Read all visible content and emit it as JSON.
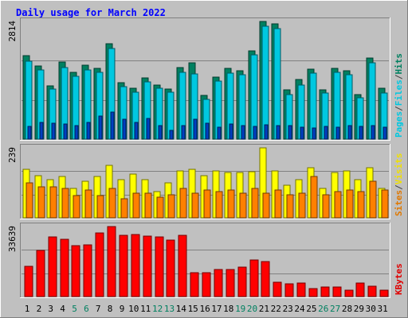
{
  "chart_data": {
    "type": "bar",
    "title": "Daily usage for March 2022",
    "categories": [
      "1",
      "2",
      "3",
      "4",
      "5",
      "6",
      "7",
      "8",
      "9",
      "10",
      "11",
      "12",
      "13",
      "14",
      "15",
      "16",
      "17",
      "18",
      "19",
      "20",
      "21",
      "22",
      "23",
      "24",
      "25",
      "26",
      "27",
      "28",
      "29",
      "30",
      "31"
    ],
    "weekend_days": [
      "5",
      "6",
      "12",
      "13",
      "19",
      "20",
      "26",
      "27"
    ],
    "panels": [
      {
        "id": "hits",
        "ymax": 2814,
        "ymax_label": "2814",
        "ylabel_parts": [
          "Pages",
          "/",
          "Files",
          "/",
          "Hits"
        ],
        "ylabel_colors": [
          "#00c8e0",
          "#404040",
          "#00c8e0",
          "#404040",
          "#008060"
        ],
        "series": [
          {
            "name": "Hits",
            "color": "#008060",
            "values": [
              1990,
              1750,
              1280,
              1840,
              1600,
              1770,
              1700,
              2290,
              1350,
              1210,
              1470,
              1300,
              1200,
              1710,
              1830,
              1050,
              1490,
              1700,
              1640,
              2120,
              2820,
              2750,
              1180,
              1420,
              1680,
              1170,
              1690,
              1640,
              1070,
              1930,
              1210
            ]
          },
          {
            "name": "Files",
            "color": "#00c8e0",
            "values": [
              1870,
              1660,
              1200,
              1720,
              1510,
              1650,
              1590,
              2170,
              1250,
              1130,
              1370,
              1220,
              1120,
              1600,
              1560,
              960,
              1380,
              1580,
              1540,
              2010,
              2700,
              2650,
              1060,
              1300,
              1570,
              1100,
              1590,
              1540,
              980,
              1830,
              1100
            ]
          },
          {
            "name": "Pages",
            "color": "#0040c0",
            "values": [
              300,
              400,
              380,
              370,
              330,
              390,
              560,
              650,
              470,
              400,
              500,
              330,
              210,
              320,
              480,
              380,
              280,
              370,
              330,
              300,
              340,
              330,
              330,
              290,
              260,
              300,
              280,
              320,
              300,
              330,
              290
            ]
          }
        ]
      },
      {
        "id": "visits",
        "ymax": 239,
        "ymax_label": "239",
        "ylabel_parts": [
          "Sites",
          "/",
          "Visits"
        ],
        "ylabel_colors": [
          "#e07800",
          "#404040",
          "#f0e000"
        ],
        "series": [
          {
            "name": "Visits",
            "color": "#ffff00",
            "values": [
              165,
              145,
              130,
              140,
              100,
              125,
              140,
              180,
              130,
              150,
              130,
              90,
              120,
              160,
              165,
              145,
              160,
              155,
              155,
              158,
              239,
              160,
              110,
              130,
              170,
              100,
              155,
              160,
              130,
              170,
              100
            ]
          },
          {
            "name": "Sites",
            "color": "#ff8000",
            "values": [
              120,
              105,
              105,
              100,
              75,
              95,
              75,
              100,
              65,
              85,
              85,
              70,
              80,
              100,
              85,
              95,
              90,
              95,
              85,
              100,
              85,
              95,
              80,
              85,
              140,
              80,
              90,
              95,
              90,
              125,
              95
            ]
          }
        ]
      },
      {
        "id": "kbytes",
        "ymax": 33639,
        "ymax_label": "33639",
        "ylabel_parts": [
          "KBytes"
        ],
        "ylabel_colors": [
          "#e00000"
        ],
        "series": [
          {
            "name": "KBytes",
            "color": "#ff0000",
            "values": [
              14500,
              22000,
              28500,
              27500,
              24500,
              25000,
              30500,
              33500,
              29500,
              30000,
              29000,
              28500,
              27000,
              29500,
              11500,
              11500,
              13000,
              13000,
              14000,
              17500,
              17000,
              7000,
              6000,
              6500,
              4000,
              4500,
              4500,
              3000,
              6500,
              5000,
              3000
            ]
          }
        ]
      }
    ]
  }
}
